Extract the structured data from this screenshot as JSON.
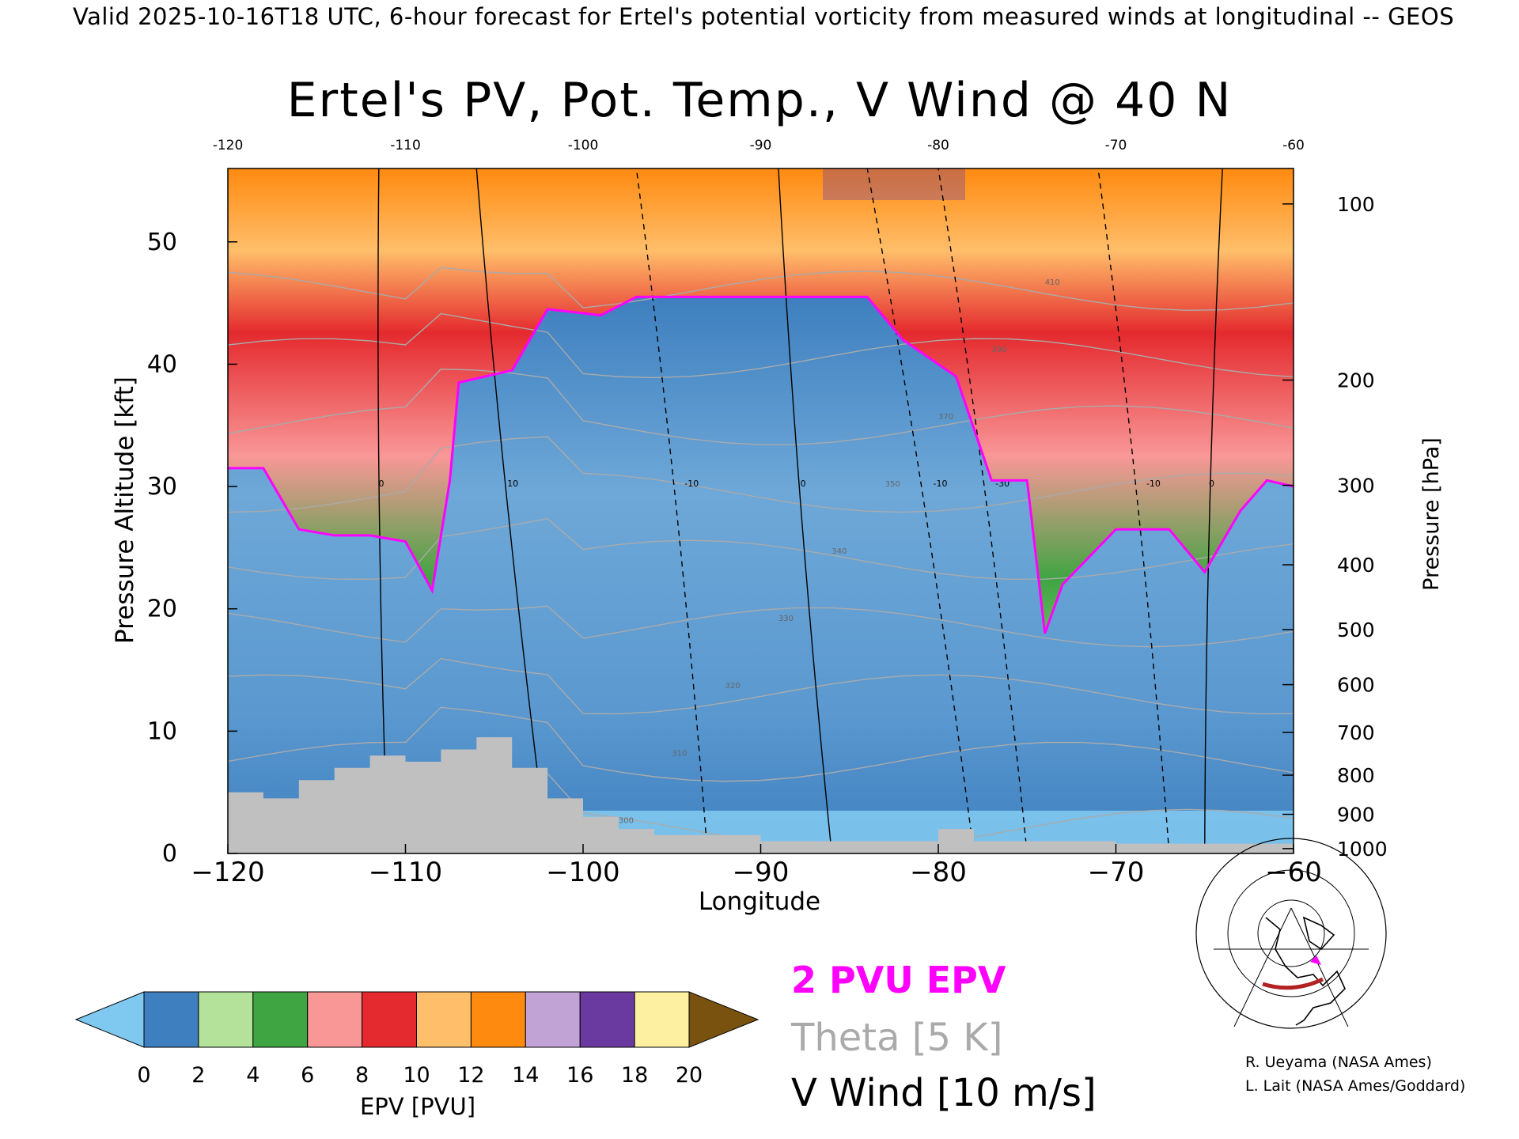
{
  "header": {
    "text": "Valid 2025-10-16T18 UTC, 6-hour forecast for Ertel's potential vorticity from measured winds at longitudinal -- GEOS"
  },
  "chart_data": {
    "type": "heatmap",
    "title": "Ertel's PV, Pot. Temp., V Wind @ 40 N",
    "xlabel": "Longitude",
    "ylabel_left": "Pressure Altitude [kft]",
    "ylabel_right": "Pressure [hPa]",
    "xlim": [
      -120,
      -60
    ],
    "ylim_kft": [
      0,
      56
    ],
    "x_ticks": [
      -120,
      -110,
      -100,
      -90,
      -80,
      -70,
      -60
    ],
    "x_tick_labels": [
      "−120",
      "−110",
      "−100",
      "−90",
      "−80",
      "−70",
      "−60"
    ],
    "x_top_tick_labels": [
      "-120",
      "-110",
      "-100",
      "-90",
      "-80",
      "-70",
      "-60"
    ],
    "y_left_ticks": [
      0,
      10,
      20,
      30,
      40,
      50
    ],
    "y_right_ticks": [
      {
        "hpa": 100,
        "kft": 53.1
      },
      {
        "hpa": 200,
        "kft": 38.7
      },
      {
        "hpa": 300,
        "kft": 30.1
      },
      {
        "hpa": 400,
        "kft": 23.6
      },
      {
        "hpa": 500,
        "kft": 18.3
      },
      {
        "hpa": 600,
        "kft": 13.8
      },
      {
        "hpa": 700,
        "kft": 9.9
      },
      {
        "hpa": 800,
        "kft": 6.4
      },
      {
        "hpa": 900,
        "kft": 3.2
      },
      {
        "hpa": 1000,
        "kft": 0.4
      }
    ],
    "tropopause_2pvu_kft": [
      {
        "lon": -120,
        "kft": 31.5
      },
      {
        "lon": -118,
        "kft": 31.5
      },
      {
        "lon": -116,
        "kft": 26.5
      },
      {
        "lon": -114,
        "kft": 26.0
      },
      {
        "lon": -112,
        "kft": 26.0
      },
      {
        "lon": -110,
        "kft": 25.5
      },
      {
        "lon": -108.5,
        "kft": 21.5
      },
      {
        "lon": -107.5,
        "kft": 30.5
      },
      {
        "lon": -107,
        "kft": 38.5
      },
      {
        "lon": -104,
        "kft": 39.5
      },
      {
        "lon": -102,
        "kft": 44.5
      },
      {
        "lon": -99,
        "kft": 44.0
      },
      {
        "lon": -97,
        "kft": 45.5
      },
      {
        "lon": -90,
        "kft": 45.5
      },
      {
        "lon": -84,
        "kft": 45.5
      },
      {
        "lon": -82,
        "kft": 42.0
      },
      {
        "lon": -79,
        "kft": 39.0
      },
      {
        "lon": -77,
        "kft": 30.5
      },
      {
        "lon": -75,
        "kft": 30.5
      },
      {
        "lon": -74,
        "kft": 18.0
      },
      {
        "lon": -73,
        "kft": 22.0
      },
      {
        "lon": -70,
        "kft": 26.5
      },
      {
        "lon": -67,
        "kft": 26.5
      },
      {
        "lon": -65,
        "kft": 23.0
      },
      {
        "lon": -63,
        "kft": 28.0
      },
      {
        "lon": -61.5,
        "kft": 30.5
      },
      {
        "lon": -60,
        "kft": 30.0
      }
    ],
    "terrain_kft": [
      {
        "lon": -120,
        "kft": 5.0
      },
      {
        "lon": -118,
        "kft": 4.5
      },
      {
        "lon": -116,
        "kft": 6.0
      },
      {
        "lon": -114,
        "kft": 7.0
      },
      {
        "lon": -112,
        "kft": 8.0
      },
      {
        "lon": -110,
        "kft": 7.5
      },
      {
        "lon": -108,
        "kft": 8.5
      },
      {
        "lon": -106,
        "kft": 9.5
      },
      {
        "lon": -104,
        "kft": 7.0
      },
      {
        "lon": -102,
        "kft": 4.5
      },
      {
        "lon": -100,
        "kft": 3.0
      },
      {
        "lon": -98,
        "kft": 2.0
      },
      {
        "lon": -96,
        "kft": 1.5
      },
      {
        "lon": -90,
        "kft": 1.0
      },
      {
        "lon": -84,
        "kft": 1.0
      },
      {
        "lon": -80,
        "kft": 2.0
      },
      {
        "lon": -78,
        "kft": 1.0
      },
      {
        "lon": -70,
        "kft": 0.8
      },
      {
        "lon": -60,
        "kft": 0.5
      }
    ],
    "v_wind_contours": [
      {
        "label": "0",
        "lon_bottom": -111,
        "lon_top": -111.5
      },
      {
        "label": "10",
        "lon_bottom": -102,
        "lon_top": -106
      },
      {
        "label": "-10",
        "lon_bottom": -93,
        "lon_top": -97
      },
      {
        "label": "0",
        "lon_bottom": -86,
        "lon_top": -89
      },
      {
        "label": "-10",
        "lon_bottom": -78,
        "lon_top": -84
      },
      {
        "label": "-30",
        "lon_bottom": -75,
        "lon_top": -80
      },
      {
        "label": "-10",
        "lon_bottom": -67,
        "lon_top": -71
      },
      {
        "label": "0",
        "lon_bottom": -65,
        "lon_top": -64
      }
    ],
    "theta_contour_labels": [
      "300",
      "310",
      "320",
      "330",
      "340",
      "350",
      "370",
      "390",
      "410"
    ],
    "colorbar": {
      "label": "EPV [PVU]",
      "min": 0,
      "max": 20,
      "ticks": [
        "0",
        "2",
        "4",
        "6",
        "8",
        "10",
        "12",
        "14",
        "16",
        "18",
        "20"
      ],
      "colors": [
        "#7fc8f0",
        "#3e7fbf",
        "#b4e29a",
        "#3fa542",
        "#f99797",
        "#e42a2e",
        "#ffbe6a",
        "#ff8a10",
        "#c2a3d6",
        "#6b3aa0",
        "#fdf0a0",
        "#7a5210"
      ],
      "extend": "both"
    },
    "legend": {
      "pv": "2 PVU EPV",
      "theta": "Theta [5 K]",
      "wind": "V Wind [10 m/s]"
    }
  },
  "credits": {
    "line1": "R. Ueyama (NASA Ames)",
    "line2": "L. Lait (NASA Ames/Goddard)"
  },
  "colors": {
    "tropopause": "#ff00ff",
    "theta": "#aaaaaa",
    "terrain": "#c0c0c0",
    "section_line": "#b22222"
  }
}
